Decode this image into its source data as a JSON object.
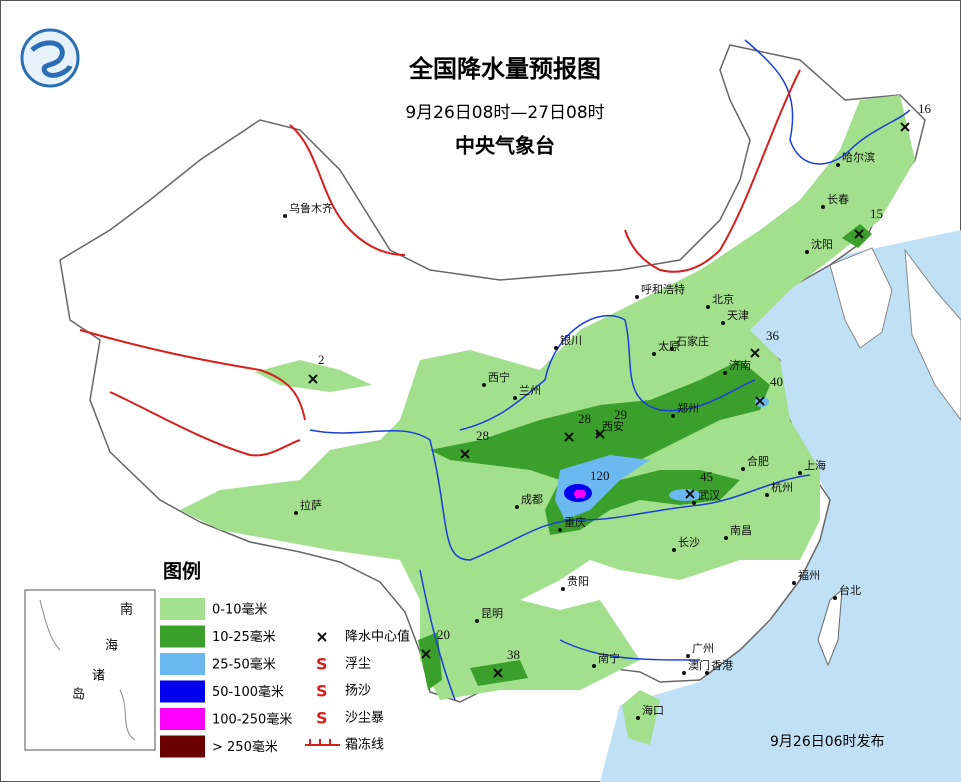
{
  "header": {
    "title": "全国降水量预报图",
    "period": "9月26日08时—27日08时",
    "issuer": "中央气象台"
  },
  "cities": [
    "乌鲁木齐",
    "哈尔滨",
    "长春",
    "沈阳",
    "呼和浩特",
    "北京",
    "天津",
    "银川",
    "太原",
    "石家庄",
    "济南",
    "西宁",
    "兰州",
    "郑州",
    "西安",
    "合肥",
    "上海",
    "武汉",
    "杭州",
    "成都",
    "拉萨",
    "重庆",
    "长沙",
    "南昌",
    "贵阳",
    "福州",
    "台北",
    "昆明",
    "南宁",
    "广州",
    "澳门",
    "香港",
    "海口"
  ],
  "precipitation_centers": [
    16,
    15,
    36,
    40,
    2,
    28,
    28,
    29,
    120,
    45,
    20,
    38
  ],
  "legend": {
    "title": "图例",
    "precipitation": [
      "0-10毫米",
      "10-25毫米",
      "25-50毫米",
      "50-100毫米",
      "100-250毫米",
      "> 250毫米"
    ],
    "symbols": [
      "降水中心值",
      "浮尘",
      "扬沙",
      "沙尘暴",
      "霜冻线"
    ]
  },
  "inset": {
    "labels": [
      "南",
      "海",
      "诸",
      "岛"
    ]
  },
  "footer": "9月26日06时发布"
}
